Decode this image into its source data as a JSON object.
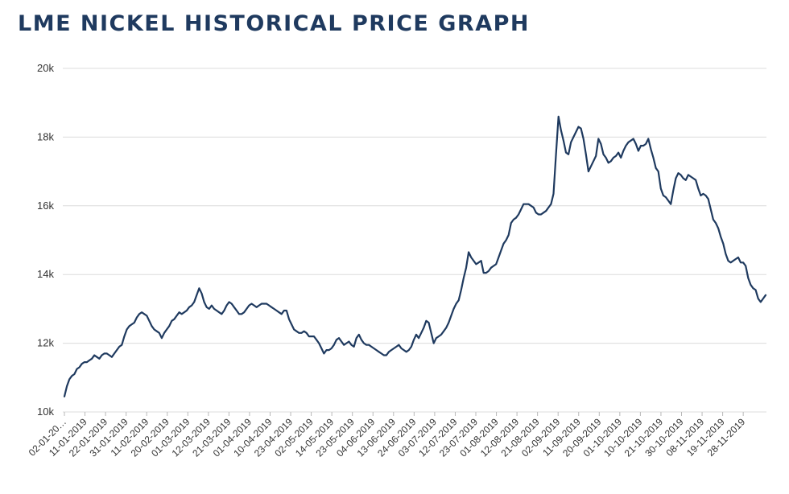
{
  "chart_data": {
    "type": "line",
    "title": "LME NICKEL HISTORICAL PRICE GRAPH",
    "xlabel": "",
    "ylabel": "",
    "ylim": [
      10000,
      20000
    ],
    "grid": true,
    "legend": "none",
    "line_color": "#1f3a5f",
    "yticks": [
      {
        "value": 10000,
        "label": "10k"
      },
      {
        "value": 12000,
        "label": "12k"
      },
      {
        "value": 14000,
        "label": "14k"
      },
      {
        "value": 16000,
        "label": "16k"
      },
      {
        "value": 18000,
        "label": "18k"
      },
      {
        "value": 20000,
        "label": "20k"
      }
    ],
    "xtick_labels": [
      "02-01-20…",
      "11-01-2019",
      "22-01-2019",
      "31-01-2019",
      "11-02-2019",
      "20-02-2019",
      "01-03-2019",
      "12-03-2019",
      "21-03-2019",
      "01-04-2019",
      "10-04-2019",
      "23-04-2019",
      "02-05-2019",
      "14-05-2019",
      "23-05-2019",
      "04-06-2019",
      "13-06-2019",
      "24-06-2019",
      "03-07-2019",
      "12-07-2019",
      "23-07-2019",
      "01-08-2019",
      "12-08-2019",
      "21-08-2019",
      "02-09-2019",
      "11-09-2019",
      "20-09-2019",
      "01-10-2019",
      "10-10-2019",
      "21-10-2019",
      "30-10-2019",
      "08-11-2019",
      "19-11-2019",
      "28-11-2019"
    ],
    "series": [
      {
        "name": "LME Nickel",
        "values": [
          10450,
          10750,
          10950,
          11050,
          11100,
          11250,
          11300,
          11400,
          11450,
          11450,
          11500,
          11550,
          11650,
          11600,
          11550,
          11650,
          11700,
          11700,
          11650,
          11600,
          11700,
          11800,
          11900,
          11950,
          12200,
          12400,
          12500,
          12550,
          12600,
          12750,
          12850,
          12900,
          12850,
          12800,
          12650,
          12500,
          12400,
          12350,
          12300,
          12150,
          12300,
          12400,
          12500,
          12650,
          12700,
          12800,
          12900,
          12850,
          12900,
          12950,
          13050,
          13100,
          13200,
          13400,
          13600,
          13450,
          13200,
          13050,
          13000,
          13100,
          13000,
          12950,
          12900,
          12850,
          12950,
          13100,
          13200,
          13150,
          13050,
          12950,
          12850,
          12850,
          12900,
          13000,
          13100,
          13150,
          13100,
          13050,
          13100,
          13150,
          13150,
          13150,
          13100,
          13050,
          13000,
          12950,
          12900,
          12850,
          12950,
          12950,
          12700,
          12550,
          12400,
          12350,
          12300,
          12300,
          12350,
          12300,
          12200,
          12200,
          12200,
          12100,
          12000,
          11850,
          11700,
          11800,
          11800,
          11850,
          11950,
          12100,
          12150,
          12050,
          11950,
          12000,
          12050,
          11950,
          11900,
          12150,
          12250,
          12100,
          12000,
          11950,
          11950,
          11900,
          11850,
          11800,
          11750,
          11700,
          11650,
          11650,
          11750,
          11800,
          11850,
          11900,
          11950,
          11850,
          11800,
          11750,
          11800,
          11900,
          12100,
          12250,
          12150,
          12300,
          12450,
          12650,
          12600,
          12300,
          12000,
          12150,
          12200,
          12250,
          12350,
          12450,
          12600,
          12800,
          13000,
          13150,
          13250,
          13550,
          13900,
          14200,
          14650,
          14500,
          14400,
          14300,
          14350,
          14400,
          14050,
          14050,
          14100,
          14200,
          14250,
          14300,
          14500,
          14700,
          14900,
          15000,
          15150,
          15500,
          15600,
          15650,
          15750,
          15900,
          16050,
          16050,
          16050,
          16000,
          15950,
          15800,
          15750,
          15750,
          15800,
          15850,
          15950,
          16050,
          16350,
          17500,
          18600,
          18200,
          17900,
          17550,
          17500,
          17850,
          18000,
          18150,
          18300,
          18250,
          17950,
          17500,
          17000,
          17150,
          17300,
          17450,
          17950,
          17800,
          17500,
          17400,
          17250,
          17300,
          17400,
          17450,
          17550,
          17400,
          17600,
          17750,
          17850,
          17900,
          17950,
          17800,
          17600,
          17750,
          17750,
          17800,
          17950,
          17650,
          17400,
          17100,
          17000,
          16500,
          16300,
          16250,
          16150,
          16050,
          16450,
          16800,
          16950,
          16900,
          16800,
          16750,
          16900,
          16850,
          16800,
          16750,
          16500,
          16300,
          16350,
          16300,
          16200,
          15900,
          15600,
          15500,
          15350,
          15100,
          14900,
          14600,
          14400,
          14350,
          14400,
          14450,
          14500,
          14350,
          14350,
          14250,
          13900,
          13700,
          13600,
          13550,
          13300,
          13200,
          13300,
          13400
        ]
      }
    ]
  }
}
